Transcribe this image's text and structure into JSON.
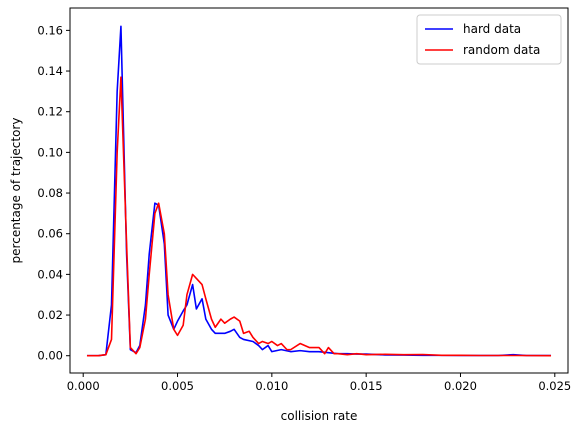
{
  "chart_data": {
    "type": "line",
    "title": "",
    "xlabel": "collision rate",
    "ylabel": "percentage of trajectory",
    "xlim": [
      -0.0007,
      0.0257
    ],
    "ylim": [
      -0.0085,
      0.171
    ],
    "xticks": [
      0.0,
      0.005,
      0.01,
      0.015,
      0.02,
      0.025
    ],
    "xtick_labels": [
      "0.000",
      "0.005",
      "0.010",
      "0.015",
      "0.020",
      "0.025"
    ],
    "yticks": [
      0.0,
      0.02,
      0.04,
      0.06,
      0.08,
      0.1,
      0.12,
      0.14,
      0.16
    ],
    "ytick_labels": [
      "0.00",
      "0.02",
      "0.04",
      "0.06",
      "0.08",
      "0.10",
      "0.12",
      "0.14",
      "0.16"
    ],
    "grid": false,
    "legend_position": "top-right",
    "series": [
      {
        "name": "hard data",
        "color": "#0000ff",
        "points": [
          [
            0.0002,
            0.0
          ],
          [
            0.0008,
            0.0
          ],
          [
            0.0012,
            0.0005
          ],
          [
            0.0015,
            0.025
          ],
          [
            0.0018,
            0.13
          ],
          [
            0.002,
            0.162
          ],
          [
            0.0023,
            0.05
          ],
          [
            0.0025,
            0.003
          ],
          [
            0.0028,
            0.0015
          ],
          [
            0.003,
            0.005
          ],
          [
            0.0033,
            0.025
          ],
          [
            0.0035,
            0.05
          ],
          [
            0.0038,
            0.075
          ],
          [
            0.004,
            0.074
          ],
          [
            0.0043,
            0.055
          ],
          [
            0.0045,
            0.02
          ],
          [
            0.0048,
            0.013
          ],
          [
            0.005,
            0.017
          ],
          [
            0.0053,
            0.022
          ],
          [
            0.0055,
            0.025
          ],
          [
            0.0058,
            0.035
          ],
          [
            0.006,
            0.023
          ],
          [
            0.0063,
            0.028
          ],
          [
            0.0065,
            0.018
          ],
          [
            0.0068,
            0.013
          ],
          [
            0.007,
            0.011
          ],
          [
            0.0075,
            0.011
          ],
          [
            0.0078,
            0.012
          ],
          [
            0.008,
            0.013
          ],
          [
            0.0083,
            0.009
          ],
          [
            0.0085,
            0.008
          ],
          [
            0.009,
            0.007
          ],
          [
            0.0093,
            0.005
          ],
          [
            0.0095,
            0.003
          ],
          [
            0.0098,
            0.005
          ],
          [
            0.01,
            0.002
          ],
          [
            0.0105,
            0.003
          ],
          [
            0.011,
            0.002
          ],
          [
            0.0115,
            0.0025
          ],
          [
            0.012,
            0.002
          ],
          [
            0.0125,
            0.002
          ],
          [
            0.013,
            0.0015
          ],
          [
            0.0135,
            0.001
          ],
          [
            0.014,
            0.001
          ],
          [
            0.0145,
            0.0008
          ],
          [
            0.015,
            0.0008
          ],
          [
            0.016,
            0.0004
          ],
          [
            0.017,
            0.0003
          ],
          [
            0.018,
            0.0002
          ],
          [
            0.019,
            0.0002
          ],
          [
            0.02,
            0.0001
          ],
          [
            0.021,
            0.0001
          ],
          [
            0.022,
            0.0001
          ],
          [
            0.0228,
            0.0005
          ],
          [
            0.0235,
            0.0001
          ],
          [
            0.0248,
            0.0001
          ]
        ]
      },
      {
        "name": "random data",
        "color": "#ff0000",
        "points": [
          [
            0.0002,
            0.0
          ],
          [
            0.0008,
            0.0
          ],
          [
            0.0012,
            0.0005
          ],
          [
            0.0015,
            0.008
          ],
          [
            0.0018,
            0.1
          ],
          [
            0.002,
            0.137
          ],
          [
            0.0023,
            0.055
          ],
          [
            0.0025,
            0.004
          ],
          [
            0.0028,
            0.001
          ],
          [
            0.003,
            0.004
          ],
          [
            0.0033,
            0.018
          ],
          [
            0.0035,
            0.04
          ],
          [
            0.0038,
            0.07
          ],
          [
            0.004,
            0.075
          ],
          [
            0.0043,
            0.06
          ],
          [
            0.0045,
            0.03
          ],
          [
            0.0048,
            0.013
          ],
          [
            0.005,
            0.01
          ],
          [
            0.0053,
            0.015
          ],
          [
            0.0055,
            0.03
          ],
          [
            0.0058,
            0.04
          ],
          [
            0.006,
            0.038
          ],
          [
            0.0063,
            0.035
          ],
          [
            0.0065,
            0.028
          ],
          [
            0.0068,
            0.018
          ],
          [
            0.007,
            0.014
          ],
          [
            0.0073,
            0.018
          ],
          [
            0.0075,
            0.016
          ],
          [
            0.0078,
            0.018
          ],
          [
            0.008,
            0.019
          ],
          [
            0.0083,
            0.017
          ],
          [
            0.0085,
            0.011
          ],
          [
            0.0088,
            0.012
          ],
          [
            0.009,
            0.009
          ],
          [
            0.0093,
            0.006
          ],
          [
            0.0095,
            0.007
          ],
          [
            0.0098,
            0.006
          ],
          [
            0.01,
            0.007
          ],
          [
            0.0103,
            0.005
          ],
          [
            0.0105,
            0.006
          ],
          [
            0.0108,
            0.003
          ],
          [
            0.011,
            0.003
          ],
          [
            0.0115,
            0.006
          ],
          [
            0.012,
            0.004
          ],
          [
            0.0125,
            0.004
          ],
          [
            0.0128,
            0.001
          ],
          [
            0.013,
            0.004
          ],
          [
            0.0133,
            0.001
          ],
          [
            0.0135,
            0.001
          ],
          [
            0.014,
            0.0005
          ],
          [
            0.0145,
            0.001
          ],
          [
            0.015,
            0.0005
          ],
          [
            0.016,
            0.0007
          ],
          [
            0.017,
            0.0005
          ],
          [
            0.018,
            0.0006
          ],
          [
            0.019,
            0.0002
          ],
          [
            0.02,
            0.0002
          ],
          [
            0.021,
            0.0001
          ],
          [
            0.022,
            0.0001
          ],
          [
            0.023,
            0.0001
          ],
          [
            0.0248,
            0.0
          ]
        ]
      }
    ]
  }
}
